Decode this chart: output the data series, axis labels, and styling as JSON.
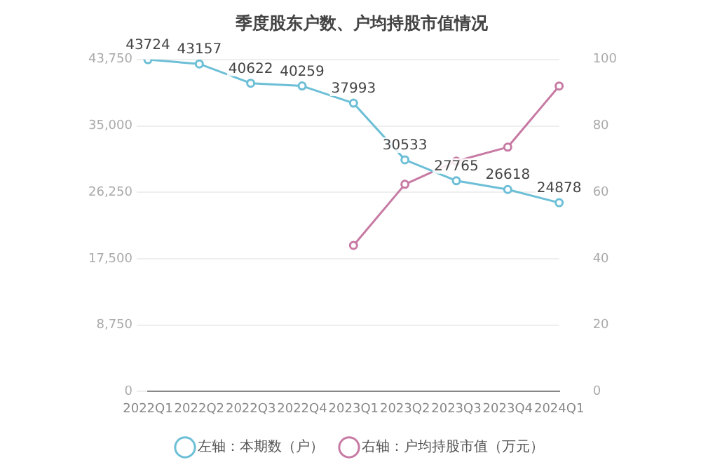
{
  "chart_data": {
    "type": "line",
    "title": "季度股东户数、户均持股市值情况",
    "categories": [
      "2022Q1",
      "2022Q2",
      "2022Q3",
      "2022Q4",
      "2023Q1",
      "2023Q2",
      "2023Q3",
      "2023Q4",
      "2024Q1"
    ],
    "series": [
      {
        "name": "左轴：本期数（户）",
        "color": "#6cbfd6",
        "values": [
          43724,
          43157,
          40622,
          40259,
          37993,
          30533,
          27765,
          26618,
          24878
        ],
        "value_labels": [
          "43724",
          "43157",
          "40622",
          "40259",
          "37993",
          "30533",
          "27765",
          "26618",
          "24878"
        ]
      },
      {
        "name": "右轴：户均持股市值（万元）",
        "color": "#c77aa3",
        "axis": "y2",
        "values": [
          null,
          null,
          null,
          null,
          44,
          62.4,
          69.4,
          73.6,
          92
        ]
      }
    ],
    "ylim": [
      0,
      43750
    ],
    "yticks": [
      {
        "value": 0,
        "label": "0"
      },
      {
        "value": 8750,
        "label": "8,750"
      },
      {
        "value": 17500,
        "label": "17,500"
      },
      {
        "value": 26250,
        "label": "26,250"
      },
      {
        "value": 35000,
        "label": "35,000"
      },
      {
        "value": 43750,
        "label": "43,750"
      }
    ],
    "y2lim": [
      0,
      100
    ],
    "y2ticks": [
      0,
      20,
      40,
      60,
      80,
      100
    ],
    "grid": "y",
    "legend": "bottom",
    "marker": "circle",
    "line_style": "solid"
  }
}
